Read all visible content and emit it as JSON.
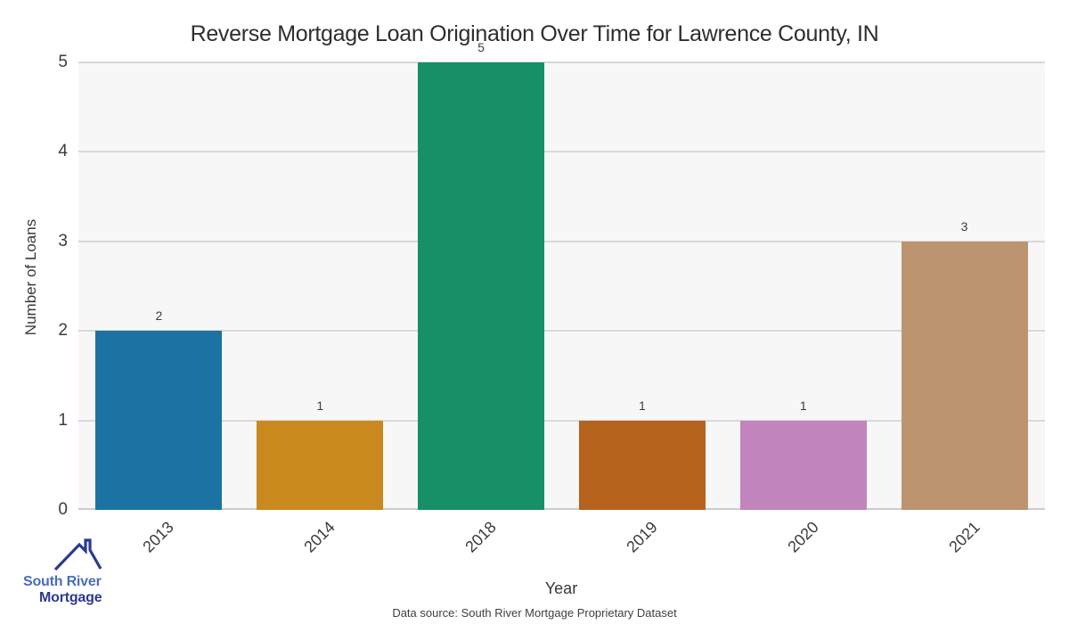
{
  "title": "Reverse Mortgage Loan Origination Over Time for Lawrence County, IN",
  "footer": "Data source: South River Mortgage Proprietary Dataset",
  "logo": {
    "line1": "South River",
    "line2": "Mortgage",
    "icon": "house-roof-icon",
    "color_line1": "#4a6cbd",
    "color_line2": "#2b3990"
  },
  "chart_data": {
    "type": "bar",
    "title": "Reverse Mortgage Loan Origination Over Time for Lawrence County, IN",
    "categories": [
      "2013",
      "2014",
      "2018",
      "2019",
      "2020",
      "2021"
    ],
    "values": [
      2,
      1,
      5,
      1,
      1,
      3
    ],
    "bar_colors": [
      "#1c73a2",
      "#c9891e",
      "#178f67",
      "#b5621d",
      "#c284bd",
      "#bd9470"
    ],
    "value_labels": [
      "2",
      "1",
      "5",
      "1",
      "1",
      "3"
    ],
    "xlabel": "Year",
    "ylabel": "Number of Loans",
    "yticks": [
      "0",
      "1",
      "2",
      "3",
      "4",
      "5"
    ],
    "ylim": [
      0,
      5
    ],
    "grid": true,
    "legend": false,
    "plot_bg": "#f7f7f7",
    "gridline_color": "#d9d9d9"
  }
}
